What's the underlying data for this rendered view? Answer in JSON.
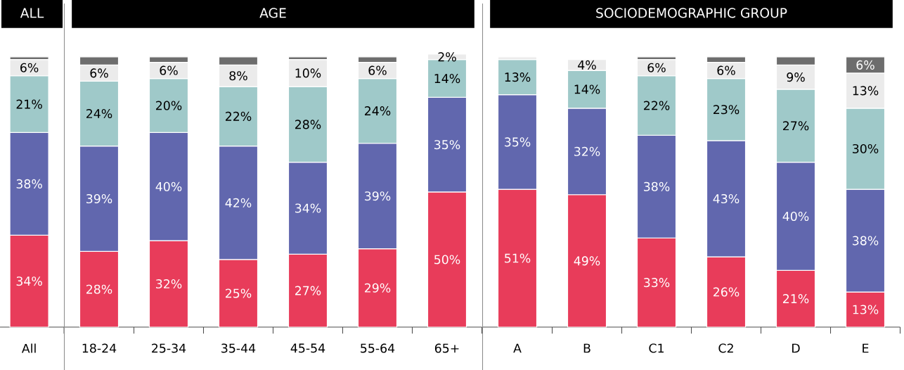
{
  "chart_data": [
    {
      "type": "bar",
      "stacked": true,
      "title": "ALL",
      "categories": [
        "All"
      ],
      "series": [
        {
          "color": "#e83c5a",
          "values": [
            34
          ],
          "value_labels": [
            "34%"
          ]
        },
        {
          "color": "#6167ae",
          "values": [
            38
          ],
          "value_labels": [
            "38%"
          ]
        },
        {
          "color": "#9fc9c9",
          "values": [
            21
          ],
          "value_labels": [
            "21%"
          ]
        },
        {
          "color": "#ebebeb",
          "values": [
            6
          ],
          "value_labels": [
            "6%"
          ]
        },
        {
          "color": "#6d6d6d",
          "values": [
            1
          ],
          "value_labels": [
            null
          ]
        }
      ]
    },
    {
      "type": "bar",
      "stacked": true,
      "title": "AGE",
      "categories": [
        "18-24",
        "25-34",
        "35-44",
        "45-54",
        "55-64",
        "65+"
      ],
      "series": [
        {
          "color": "#e83c5a",
          "values": [
            28,
            32,
            25,
            27,
            29,
            50
          ],
          "value_labels": [
            "28%",
            "32%",
            "25%",
            "27%",
            "29%",
            "50%"
          ]
        },
        {
          "color": "#6167ae",
          "values": [
            39,
            40,
            42,
            34,
            39,
            35
          ],
          "value_labels": [
            "39%",
            "40%",
            "42%",
            "34%",
            "39%",
            "35%"
          ]
        },
        {
          "color": "#9fc9c9",
          "values": [
            24,
            20,
            22,
            28,
            24,
            14
          ],
          "value_labels": [
            "24%",
            "20%",
            "22%",
            "28%",
            "24%",
            "14%"
          ]
        },
        {
          "color": "#ebebeb",
          "values": [
            6,
            6,
            8,
            10,
            6,
            2
          ],
          "value_labels": [
            "6%",
            "6%",
            "8%",
            "10%",
            "6%",
            "2%"
          ]
        },
        {
          "color": "#6d6d6d",
          "values": [
            3,
            2,
            3,
            1,
            2,
            null
          ],
          "value_labels": [
            null,
            null,
            null,
            null,
            null,
            null
          ]
        }
      ]
    },
    {
      "type": "bar",
      "stacked": true,
      "title": "SOCIODEMOGRAPHIC GROUP",
      "categories": [
        "A",
        "B",
        "C1",
        "C2",
        "D",
        "E"
      ],
      "series": [
        {
          "color": "#e83c5a",
          "values": [
            51,
            49,
            33,
            26,
            21,
            13
          ],
          "value_labels": [
            "51%",
            "49%",
            "33%",
            "26%",
            "21%",
            "13%"
          ]
        },
        {
          "color": "#6167ae",
          "values": [
            35,
            32,
            38,
            43,
            40,
            38
          ],
          "value_labels": [
            "35%",
            "32%",
            "38%",
            "43%",
            "40%",
            "38%"
          ]
        },
        {
          "color": "#9fc9c9",
          "values": [
            13,
            14,
            22,
            23,
            27,
            30
          ],
          "value_labels": [
            "13%",
            "14%",
            "22%",
            "23%",
            "27%",
            "30%"
          ]
        },
        {
          "color": "#ebebeb",
          "values": [
            1,
            4,
            6,
            6,
            9,
            13
          ],
          "value_labels": [
            null,
            "4%",
            "6%",
            "6%",
            "9%",
            "13%"
          ]
        },
        {
          "color": "#6d6d6d",
          "values": [
            null,
            null,
            1,
            2,
            3,
            6
          ],
          "value_labels": [
            null,
            null,
            null,
            null,
            null,
            "6%"
          ]
        }
      ]
    }
  ]
}
